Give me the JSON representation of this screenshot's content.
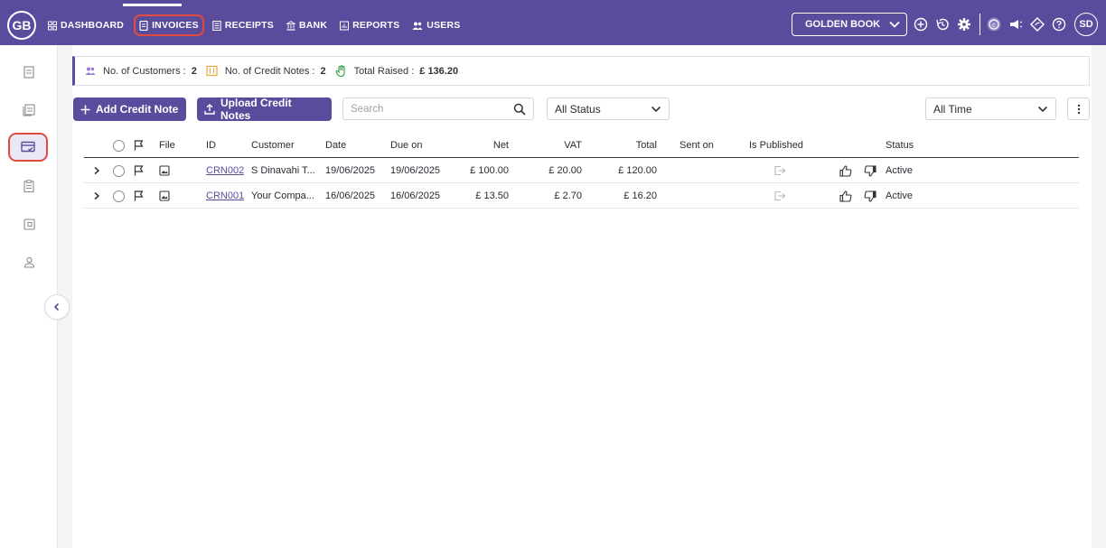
{
  "app": {
    "logo_initials": "GB",
    "nav": [
      {
        "label": "DASHBOARD",
        "icon": "grid-icon"
      },
      {
        "label": "INVOICES",
        "icon": "invoice-icon",
        "active": true
      },
      {
        "label": "RECEIPTS",
        "icon": "receipt-icon"
      },
      {
        "label": "BANK",
        "icon": "bank-icon"
      },
      {
        "label": "REPORTS",
        "icon": "report-icon"
      },
      {
        "label": "USERS",
        "icon": "users-icon"
      }
    ],
    "company": "GOLDEN BOOK",
    "user_initials": "SD"
  },
  "colors": {
    "brand": "#5b4b9d",
    "highlight": "#e14a3f"
  },
  "stats": {
    "customers_label": "No. of Customers :",
    "customers_value": "2",
    "credit_notes_label": "No. of Credit Notes :",
    "credit_notes_value": "2",
    "total_raised_label": "Total Raised :",
    "total_raised_value": "£ 136.20"
  },
  "toolbar": {
    "add_label": "Add Credit Note",
    "upload_label": "Upload Credit Notes",
    "search_placeholder": "Search",
    "status_filter": "All Status",
    "time_filter": "All Time"
  },
  "table": {
    "columns": {
      "file": "File",
      "id": "ID",
      "customer": "Customer",
      "date": "Date",
      "due_on": "Due on",
      "net": "Net",
      "vat": "VAT",
      "total": "Total",
      "sent_on": "Sent on",
      "is_published": "Is Published",
      "status": "Status"
    },
    "rows": [
      {
        "id": "CRN002",
        "customer": "S Dinavahi T...",
        "date": "19/06/2025",
        "due_on": "19/06/2025",
        "net": "£ 100.00",
        "vat": "£ 20.00",
        "total": "£ 120.00",
        "sent_on": "",
        "status": "Active"
      },
      {
        "id": "CRN001",
        "customer": "Your Compa...",
        "date": "16/06/2025",
        "due_on": "16/06/2025",
        "net": "£ 13.50",
        "vat": "£ 2.70",
        "total": "£ 16.20",
        "sent_on": "",
        "status": "Active"
      }
    ]
  }
}
